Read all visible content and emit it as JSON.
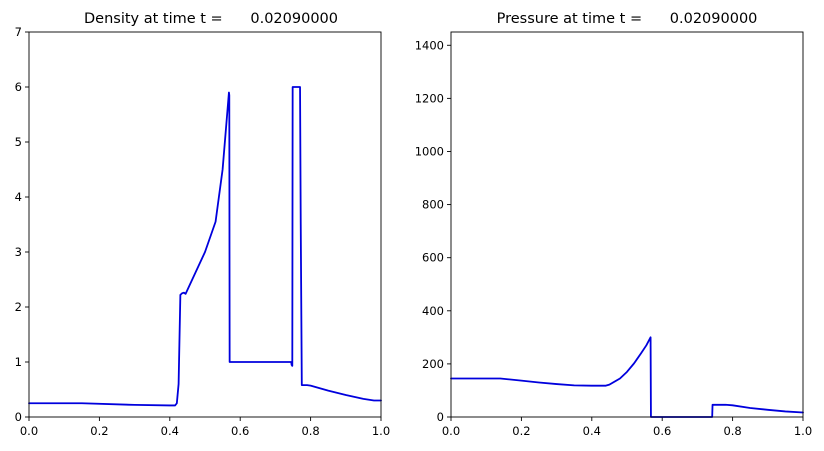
{
  "colors": {
    "line": "#0000dd",
    "axes": "#000000",
    "background": "#ffffff"
  },
  "chart_data": [
    {
      "type": "line",
      "title": "Density at time t =      0.02090000",
      "xlabel": "",
      "ylabel": "",
      "xlim": [
        0.0,
        1.0
      ],
      "ylim": [
        0,
        7
      ],
      "grid": false,
      "xticks": [
        "0.0",
        "0.2",
        "0.4",
        "0.6",
        "0.8",
        "1.0"
      ],
      "yticks": [
        "0",
        "1",
        "2",
        "3",
        "4",
        "5",
        "6",
        "7"
      ],
      "x": [
        0.0,
        0.15,
        0.3,
        0.4,
        0.415,
        0.42,
        0.425,
        0.43,
        0.435,
        0.44,
        0.445,
        0.5,
        0.53,
        0.55,
        0.568,
        0.569,
        0.57,
        0.6,
        0.7,
        0.745,
        0.746,
        0.748,
        0.749,
        0.75,
        0.77,
        0.772,
        0.775,
        0.79,
        0.8,
        0.85,
        0.9,
        0.95,
        0.98,
        1.0
      ],
      "y": [
        0.25,
        0.25,
        0.22,
        0.21,
        0.21,
        0.25,
        0.6,
        2.22,
        2.25,
        2.26,
        2.24,
        3.0,
        3.55,
        4.5,
        5.9,
        5.85,
        1.0,
        1.0,
        1.0,
        1.0,
        0.95,
        0.93,
        6.0,
        6.0,
        6.0,
        3.5,
        0.58,
        0.58,
        0.57,
        0.48,
        0.4,
        0.33,
        0.3,
        0.3
      ]
    },
    {
      "type": "line",
      "title": "Pressure at time t =      0.02090000",
      "xlabel": "",
      "ylabel": "",
      "xlim": [
        0.0,
        1.0
      ],
      "ylim": [
        0,
        1450
      ],
      "grid": false,
      "xticks": [
        "0.0",
        "0.2",
        "0.4",
        "0.6",
        "0.8",
        "1.0"
      ],
      "yticks": [
        "0",
        "200",
        "400",
        "600",
        "800",
        "1000",
        "1200",
        "1400"
      ],
      "x": [
        0.0,
        0.14,
        0.2,
        0.25,
        0.3,
        0.35,
        0.4,
        0.44,
        0.45,
        0.48,
        0.5,
        0.52,
        0.54,
        0.555,
        0.567,
        0.568,
        0.6,
        0.65,
        0.7,
        0.742,
        0.743,
        0.75,
        0.78,
        0.8,
        0.85,
        0.9,
        0.95,
        1.0
      ],
      "y": [
        145,
        145,
        137,
        130,
        124,
        119,
        118,
        118,
        122,
        145,
        170,
        202,
        240,
        270,
        300,
        0,
        0,
        0,
        0,
        0,
        46,
        46,
        46,
        44,
        34,
        27,
        21,
        17
      ]
    }
  ]
}
